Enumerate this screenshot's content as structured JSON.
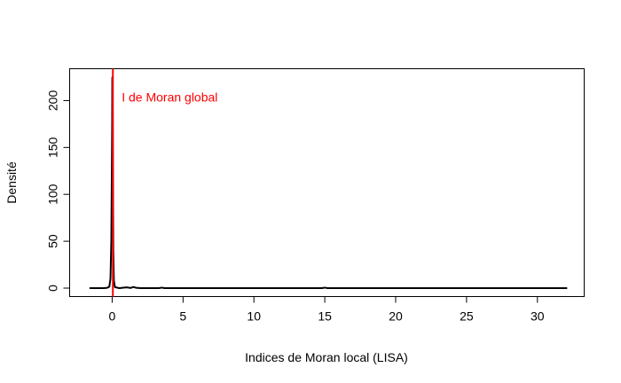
{
  "chart_data": {
    "type": "line",
    "title": "",
    "xlabel": "Indices de Moran local (LISA)",
    "ylabel": "Densité",
    "xlim": [
      -3.0,
      33.3
    ],
    "ylim": [
      -9,
      234
    ],
    "xticks": [
      0,
      5,
      10,
      15,
      20,
      25,
      30
    ],
    "yticks": [
      0,
      50,
      100,
      150,
      200
    ],
    "grid": false,
    "series": [
      {
        "name": "densité",
        "color": "#000000",
        "x": [
          -1.6,
          -0.6,
          -0.35,
          -0.2,
          -0.12,
          -0.06,
          -0.02,
          0.0,
          0.01,
          0.02,
          0.04,
          0.06,
          0.08,
          0.12,
          0.2,
          0.5,
          1.0,
          1.3,
          1.5,
          1.7,
          2.0,
          3.3,
          3.5,
          3.7,
          6.0,
          12.0,
          14.8,
          15.0,
          15.2,
          20.0,
          25.0,
          32.1
        ],
        "y": [
          0,
          0,
          0.3,
          1.5,
          10,
          50,
          130,
          175,
          224,
          225,
          190,
          110,
          40,
          8,
          1,
          0,
          0.8,
          0.2,
          1.2,
          0.3,
          0,
          0,
          0.5,
          0,
          0,
          0,
          0,
          0.5,
          0,
          0,
          0,
          0
        ]
      }
    ],
    "vlines": [
      {
        "x": 0.05,
        "color": "#ff0000",
        "label": "I de Moran global"
      }
    ]
  }
}
